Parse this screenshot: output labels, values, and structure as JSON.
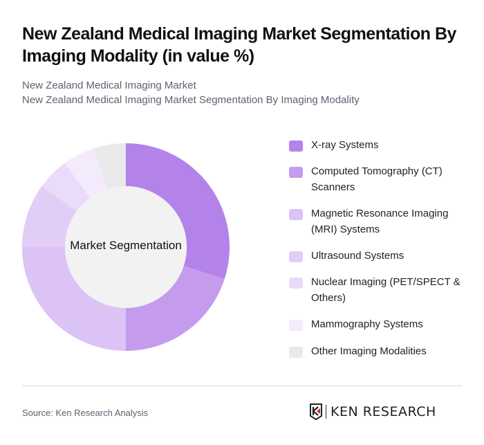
{
  "header": {
    "title": "New Zealand Medical Imaging Market Segmentation By Imaging Modality (in value %)",
    "subtitle_line1": "New Zealand Medical Imaging Market",
    "subtitle_line2": "New Zealand Medical Imaging Market Segmentation By Imaging Modality"
  },
  "chart": {
    "center_label": "Market Segmentation"
  },
  "footer": {
    "source": "Source: Ken Research Analysis",
    "logo_text": "KEN RESEARCH"
  },
  "chart_data": {
    "type": "pie",
    "subtype": "donut",
    "title": "New Zealand Medical Imaging Market Segmentation By Imaging Modality (in value %)",
    "center_label": "Market Segmentation",
    "legend_position": "right",
    "categories": [
      "X-ray Systems",
      "Computed Tomography (CT) Scanners",
      "Magnetic Resonance Imaging (MRI) Systems",
      "Ultrasound Systems",
      "Nuclear Imaging (PET/SPECT & Others)",
      "Mammography Systems",
      "Other Imaging Modalities"
    ],
    "values": [
      30,
      20,
      25,
      10,
      5,
      5,
      5
    ],
    "colors": [
      "#b383ea",
      "#c59ced",
      "#dbc3f5",
      "#e1cdf6",
      "#e9dbf9",
      "#f3ebfc",
      "#e9e9e9"
    ],
    "unit": "%"
  }
}
